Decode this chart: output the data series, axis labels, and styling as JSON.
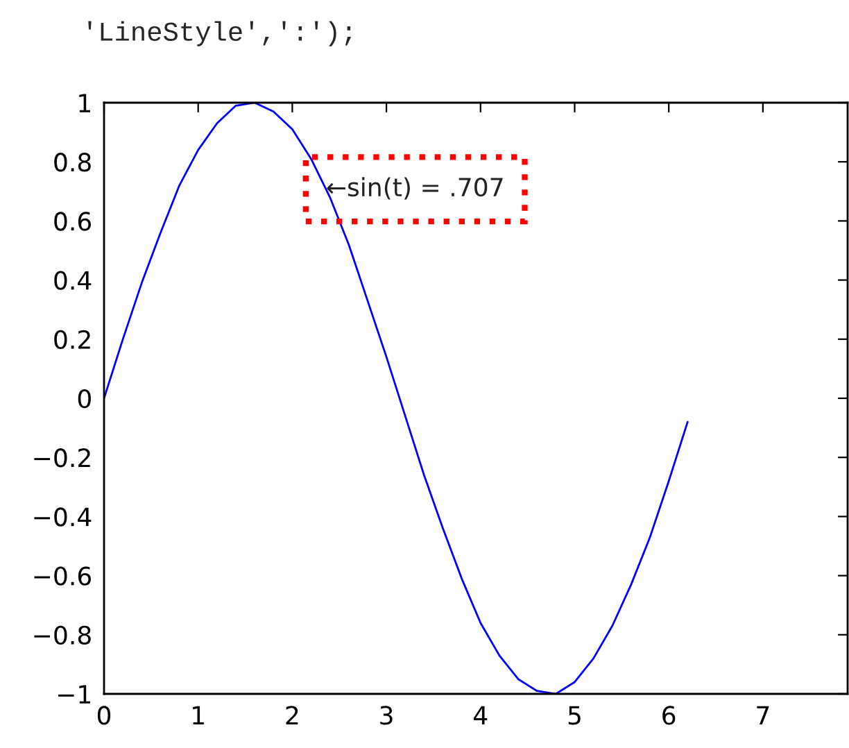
{
  "chart_data": {
    "type": "line",
    "x": [
      0,
      0.2,
      0.4,
      0.6,
      0.8,
      1.0,
      1.2,
      1.4,
      1.6,
      1.8,
      2.0,
      2.2,
      2.4,
      2.6,
      2.8,
      3.0,
      3.2,
      3.4,
      3.6,
      3.8,
      4.0,
      4.2,
      4.4,
      4.6,
      4.8,
      5.0,
      5.2,
      5.4,
      5.6,
      5.8,
      6.0,
      6.2
    ],
    "series": [
      {
        "color": "#0000ff",
        "values": [
          0,
          0.2,
          0.39,
          0.56,
          0.72,
          0.84,
          0.93,
          0.99,
          1.0,
          0.97,
          0.91,
          0.81,
          0.68,
          0.52,
          0.33,
          0.14,
          -0.06,
          -0.26,
          -0.44,
          -0.61,
          -0.76,
          -0.87,
          -0.95,
          -0.99,
          -1.0,
          -0.96,
          -0.88,
          -0.77,
          -0.63,
          -0.47,
          -0.28,
          -0.08
        ]
      }
    ],
    "xlim": [
      0,
      7.9
    ],
    "xticks": [
      0,
      1,
      2,
      3,
      4,
      5,
      6,
      7
    ],
    "ylim": [
      -1,
      1
    ],
    "yticks": [
      -1,
      -0.8,
      -0.6,
      -0.4,
      -0.2,
      0,
      0.2,
      0.4,
      0.6,
      0.8,
      1
    ],
    "annotations": [
      "    'LineStyle',':');",
      {
        "text": "←sin(t) = .707",
        "x": 2.356,
        "y": 0.707
      }
    ],
    "grid": false,
    "legend": false,
    "marker": "none",
    "line_style": "solid"
  }
}
